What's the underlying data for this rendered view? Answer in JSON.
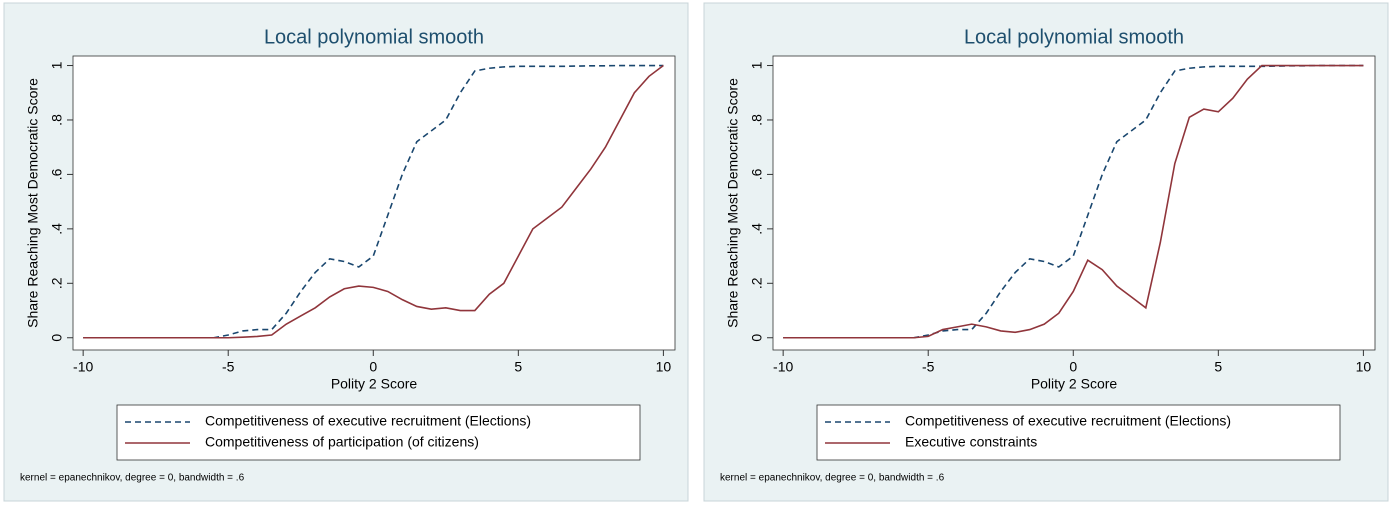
{
  "chart_data": [
    {
      "type": "line",
      "title": "Local polynomial smooth",
      "xlabel": "Polity 2 Score",
      "ylabel": "Share Reaching Most Democratic Score",
      "x": [
        -10,
        -9.5,
        -9,
        -8.5,
        -8,
        -7.5,
        -7,
        -6.5,
        -6,
        -5.5,
        -5,
        -4.5,
        -4,
        -3.5,
        -3,
        -2.5,
        -2,
        -1.5,
        -1,
        -0.5,
        0,
        0.5,
        1,
        1.5,
        2,
        2.5,
        3,
        3.5,
        4,
        4.5,
        5,
        5.5,
        6,
        6.5,
        7,
        7.5,
        8,
        8.5,
        9,
        9.5,
        10
      ],
      "series": [
        {
          "name": "Competitiveness of executive recruitment (Elections)",
          "color": "#1a476f",
          "line_style": "dashed",
          "values": [
            0,
            0,
            0,
            0,
            0,
            0,
            0,
            0,
            0,
            0,
            0.01,
            0.025,
            0.03,
            0.03,
            0.09,
            0.17,
            0.24,
            0.29,
            0.28,
            0.26,
            0.3,
            0.45,
            0.6,
            0.72,
            0.76,
            0.8,
            0.9,
            0.98,
            0.99,
            0.995,
            0.997,
            0.997,
            0.997,
            0.997,
            0.998,
            0.999,
            0.999,
            1,
            1,
            1,
            1
          ]
        },
        {
          "name": "Competitiveness of participation (of citizens)",
          "color": "#90353b",
          "line_style": "solid",
          "values": [
            0,
            0,
            0,
            0,
            0,
            0,
            0,
            0,
            0,
            0,
            0,
            0.002,
            0.005,
            0.01,
            0.05,
            0.08,
            0.11,
            0.15,
            0.18,
            0.19,
            0.185,
            0.17,
            0.14,
            0.115,
            0.105,
            0.11,
            0.1,
            0.1,
            0.16,
            0.2,
            0.3,
            0.4,
            0.44,
            0.48,
            0.55,
            0.62,
            0.7,
            0.8,
            0.9,
            0.96,
            1
          ]
        }
      ],
      "xlim": [
        -10.35,
        10.4
      ],
      "ylim": [
        -0.045,
        1.035
      ],
      "xticks": [
        -10,
        -5,
        0,
        5,
        10
      ],
      "yticks": [
        0,
        {
          "value": 0.2,
          "label": ".2"
        },
        {
          "value": 0.4,
          "label": ".4"
        },
        {
          "value": 0.6,
          "label": ".6"
        },
        {
          "value": 0.8,
          "label": ".8"
        },
        1
      ],
      "note": "kernel = epanechnikov, degree = 0, bandwidth = .6"
    },
    {
      "type": "line",
      "title": "Local polynomial smooth",
      "xlabel": "Polity 2 Score",
      "ylabel": "Share Reaching Most Democratic Score",
      "x": [
        -10,
        -9.5,
        -9,
        -8.5,
        -8,
        -7.5,
        -7,
        -6.5,
        -6,
        -5.5,
        -5,
        -4.5,
        -4,
        -3.5,
        -3,
        -2.5,
        -2,
        -1.5,
        -1,
        -0.5,
        0,
        0.5,
        1,
        1.5,
        2,
        2.5,
        3,
        3.5,
        4,
        4.5,
        5,
        5.5,
        6,
        6.5,
        7,
        7.5,
        8,
        8.5,
        9,
        9.5,
        10
      ],
      "series": [
        {
          "name": "Competitiveness of executive recruitment (Elections)",
          "color": "#1a476f",
          "line_style": "dashed",
          "values": [
            0,
            0,
            0,
            0,
            0,
            0,
            0,
            0,
            0,
            0,
            0.01,
            0.025,
            0.03,
            0.03,
            0.09,
            0.17,
            0.24,
            0.29,
            0.28,
            0.26,
            0.3,
            0.45,
            0.6,
            0.72,
            0.76,
            0.8,
            0.9,
            0.98,
            0.99,
            0.995,
            0.997,
            0.997,
            0.997,
            0.997,
            0.998,
            0.999,
            0.999,
            1,
            1,
            1,
            1
          ]
        },
        {
          "name": "Executive constraints",
          "color": "#90353b",
          "line_style": "solid",
          "values": [
            0,
            0,
            0,
            0,
            0,
            0,
            0,
            0,
            0,
            0,
            0.005,
            0.03,
            0.04,
            0.05,
            0.04,
            0.025,
            0.02,
            0.03,
            0.05,
            0.09,
            0.17,
            0.285,
            0.25,
            0.19,
            0.15,
            0.11,
            0.35,
            0.64,
            0.81,
            0.84,
            0.83,
            0.88,
            0.95,
            1,
            1,
            1,
            1,
            1,
            1,
            1,
            1
          ]
        }
      ],
      "xlim": [
        -10.35,
        10.4
      ],
      "ylim": [
        -0.045,
        1.035
      ],
      "xticks": [
        -10,
        -5,
        0,
        5,
        10
      ],
      "yticks": [
        0,
        {
          "value": 0.2,
          "label": ".2"
        },
        {
          "value": 0.4,
          "label": ".4"
        },
        {
          "value": 0.6,
          "label": ".6"
        },
        {
          "value": 0.8,
          "label": ".8"
        },
        1
      ],
      "note": "kernel = epanechnikov, degree = 0, bandwidth = .6"
    }
  ]
}
